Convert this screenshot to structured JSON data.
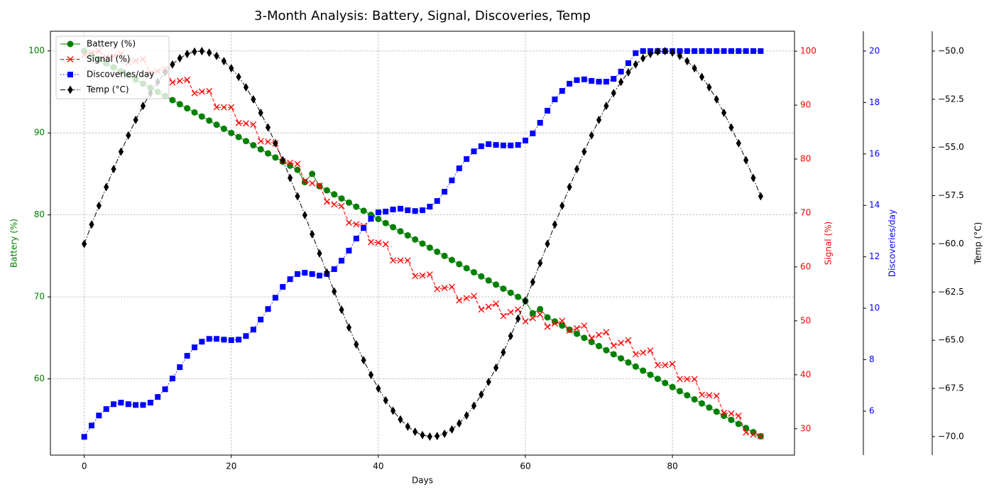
{
  "chart_data": {
    "type": "line",
    "title": "3-Month Analysis: Battery, Signal, Discoveries, Temp",
    "xlabel": "Days",
    "x": [
      0,
      1,
      2,
      3,
      4,
      5,
      6,
      7,
      8,
      9,
      10,
      11,
      12,
      13,
      14,
      15,
      16,
      17,
      18,
      19,
      20,
      21,
      22,
      23,
      24,
      25,
      26,
      27,
      28,
      29,
      30,
      31,
      32,
      33,
      34,
      35,
      36,
      37,
      38,
      39,
      40,
      41,
      42,
      43,
      44,
      45,
      46,
      47,
      48,
      49,
      50,
      51,
      52,
      53,
      54,
      55,
      56,
      57,
      58,
      59,
      60,
      61,
      62,
      63,
      64,
      65,
      66,
      67,
      68,
      69,
      70,
      71,
      72,
      73,
      74,
      75,
      76,
      77,
      78,
      79,
      80,
      81,
      82,
      83,
      84,
      85,
      86,
      87,
      88,
      89,
      90,
      91,
      92
    ],
    "xlim": [
      -4.6,
      96.6
    ],
    "xticks": [
      0,
      20,
      40,
      60,
      80
    ],
    "ylabel": "Battery (%)",
    "ylim": [
      50.7,
      102.4
    ],
    "yticks": [
      60,
      70,
      80,
      90,
      100
    ],
    "y2label": "Signal (%)",
    "y2lim": [
      25.1,
      103.7
    ],
    "y2ticks": [
      30,
      40,
      50,
      60,
      70,
      80,
      90,
      100
    ],
    "y3label": "Discoveries/day",
    "y3lim": [
      4.29,
      20.77
    ],
    "y3ticks": [
      6,
      8,
      10,
      12,
      14,
      16,
      18,
      20
    ],
    "y4label": "Temp (°C)",
    "y4lim": [
      -70.96,
      -48.97
    ],
    "y4ticks": [
      {
        "value": -50,
        "label": "−50.0"
      },
      {
        "value": -52.5,
        "label": "−52.5"
      },
      {
        "value": -55,
        "label": "−55.0"
      },
      {
        "value": -57.5,
        "label": "−57.5"
      },
      {
        "value": -60,
        "label": "−60.0"
      },
      {
        "value": -62.5,
        "label": "−62.5"
      },
      {
        "value": -65,
        "label": "−65.0"
      },
      {
        "value": -67.5,
        "label": "−67.5"
      },
      {
        "value": -70,
        "label": "−70.0"
      }
    ],
    "grid": true,
    "legend": "upper left",
    "series": [
      {
        "name": "Battery (%)",
        "color": "#008000",
        "axis": "y",
        "marker": "circle",
        "linestyle": "solid",
        "values": [
          100,
          99.5,
          99,
          98.5,
          98,
          97.5,
          97,
          96.5,
          96,
          95.5,
          95,
          94.5,
          94,
          93.5,
          93,
          92.5,
          92,
          91.5,
          91,
          90.5,
          90,
          89.5,
          89,
          88.5,
          88,
          87.5,
          87,
          86.5,
          86,
          85.5,
          84,
          85,
          83.5,
          83,
          82.5,
          82,
          81.5,
          81,
          80.5,
          80,
          79.5,
          79,
          78.5,
          78,
          77.5,
          77,
          76.5,
          76,
          75.5,
          75,
          74.5,
          74,
          73.5,
          73,
          72.5,
          72,
          71.5,
          71,
          70.5,
          70,
          69.5,
          68,
          68.5,
          67.5,
          67,
          66.5,
          66,
          65.5,
          65,
          64.5,
          64,
          63.5,
          63,
          62.5,
          62,
          61.5,
          61,
          60.5,
          60,
          59.5,
          59,
          58.5,
          58,
          57.5,
          57,
          56.5,
          56,
          55.5,
          55,
          54.5,
          54,
          53.5,
          53
        ]
      },
      {
        "name": "Signal (%)",
        "color": "#ff0000",
        "axis": "y2",
        "marker": "x",
        "linestyle": "dashed",
        "values": [
          99.3,
          99.7,
          100,
          98.9,
          99.1,
          99.5,
          97.9,
          98.2,
          98.5,
          96,
          96.3,
          96.7,
          94.2,
          94.5,
          94.7,
          92.2,
          92.5,
          92.6,
          89.6,
          89.6,
          89.6,
          86.7,
          86.6,
          86.4,
          83.3,
          83.2,
          82.9,
          79.6,
          79.3,
          79.1,
          75.9,
          75.5,
          75.1,
          72.1,
          71.6,
          71.3,
          68.2,
          67.9,
          67.6,
          64.6,
          64.5,
          64.2,
          61.2,
          61.2,
          61.2,
          58.3,
          58.4,
          58.6,
          55.9,
          56.1,
          56.3,
          53.8,
          54.2,
          54.6,
          52.1,
          52.6,
          53.2,
          50.9,
          51.6,
          52.1,
          49.9,
          50.5,
          51.2,
          48.9,
          49.5,
          50,
          48.2,
          48.6,
          49.1,
          46.8,
          47.4,
          47.9,
          45.4,
          45.9,
          46.4,
          43.8,
          44.1,
          44.5,
          41.8,
          41.8,
          42,
          39.2,
          39.2,
          39.2,
          36.3,
          36.2,
          36.1,
          32.9,
          32.8,
          32.4,
          29.3,
          28.9,
          28.6
        ]
      },
      {
        "name": "Discoveries/day",
        "color": "#0000ff",
        "axis": "y3",
        "marker": "square",
        "linestyle": "dotted",
        "values": [
          5.0,
          5.44,
          5.83,
          6.08,
          6.27,
          6.33,
          6.27,
          6.24,
          6.24,
          6.33,
          6.55,
          6.85,
          7.27,
          7.71,
          8.15,
          8.48,
          8.7,
          8.81,
          8.81,
          8.78,
          8.76,
          8.78,
          8.92,
          9.17,
          9.56,
          9.97,
          10.41,
          10.83,
          11.13,
          11.33,
          11.38,
          11.33,
          11.27,
          11.33,
          11.52,
          11.85,
          12.24,
          12.71,
          13.12,
          13.48,
          13.73,
          13.76,
          13.84,
          13.87,
          13.81,
          13.78,
          13.81,
          13.95,
          14.17,
          14.53,
          14.97,
          15.44,
          15.8,
          16.1,
          16.3,
          16.38,
          16.35,
          16.33,
          16.33,
          16.35,
          16.52,
          16.8,
          17.21,
          17.68,
          18.12,
          18.45,
          18.73,
          18.87,
          18.9,
          18.84,
          18.81,
          18.81,
          18.92,
          19.2,
          19.53,
          19.92,
          20,
          20,
          20,
          20,
          20,
          20,
          20,
          20,
          20,
          20,
          20,
          20,
          20,
          20,
          20,
          20,
          20
        ]
      },
      {
        "name": "Temp (°C)",
        "color": "#000000",
        "axis": "y4",
        "marker": "diamond",
        "linestyle": "dashdot",
        "values": [
          -60,
          -59,
          -58.02,
          -57.05,
          -56.12,
          -55.22,
          -54.37,
          -53.57,
          -52.84,
          -52.18,
          -51.6,
          -51.1,
          -50.69,
          -50.37,
          -50.15,
          -50.03,
          -50,
          -50.08,
          -50.25,
          -50.52,
          -50.89,
          -51.34,
          -51.88,
          -52.5,
          -53.2,
          -53.96,
          -54.78,
          -55.66,
          -56.58,
          -57.53,
          -58.51,
          -59.5,
          -60.5,
          -61.49,
          -62.47,
          -63.42,
          -64.34,
          -65.22,
          -66.04,
          -66.8,
          -67.5,
          -68.12,
          -68.66,
          -69.11,
          -69.48,
          -69.75,
          -69.92,
          -70,
          -69.97,
          -69.85,
          -69.63,
          -69.31,
          -68.9,
          -68.4,
          -67.82,
          -67.16,
          -66.43,
          -65.63,
          -64.78,
          -63.88,
          -62.95,
          -61.98,
          -61,
          -60,
          -59,
          -58.02,
          -57.05,
          -56.12,
          -55.22,
          -54.37,
          -53.57,
          -52.84,
          -52.18,
          -51.6,
          -51.1,
          -50.69,
          -50.37,
          -50.15,
          -50.03,
          -50,
          -50.08,
          -50.25,
          -50.52,
          -50.89,
          -51.34,
          -51.88,
          -52.5,
          -53.2,
          -53.96,
          -54.78,
          -55.66,
          -56.58,
          -57.53
        ]
      }
    ]
  }
}
